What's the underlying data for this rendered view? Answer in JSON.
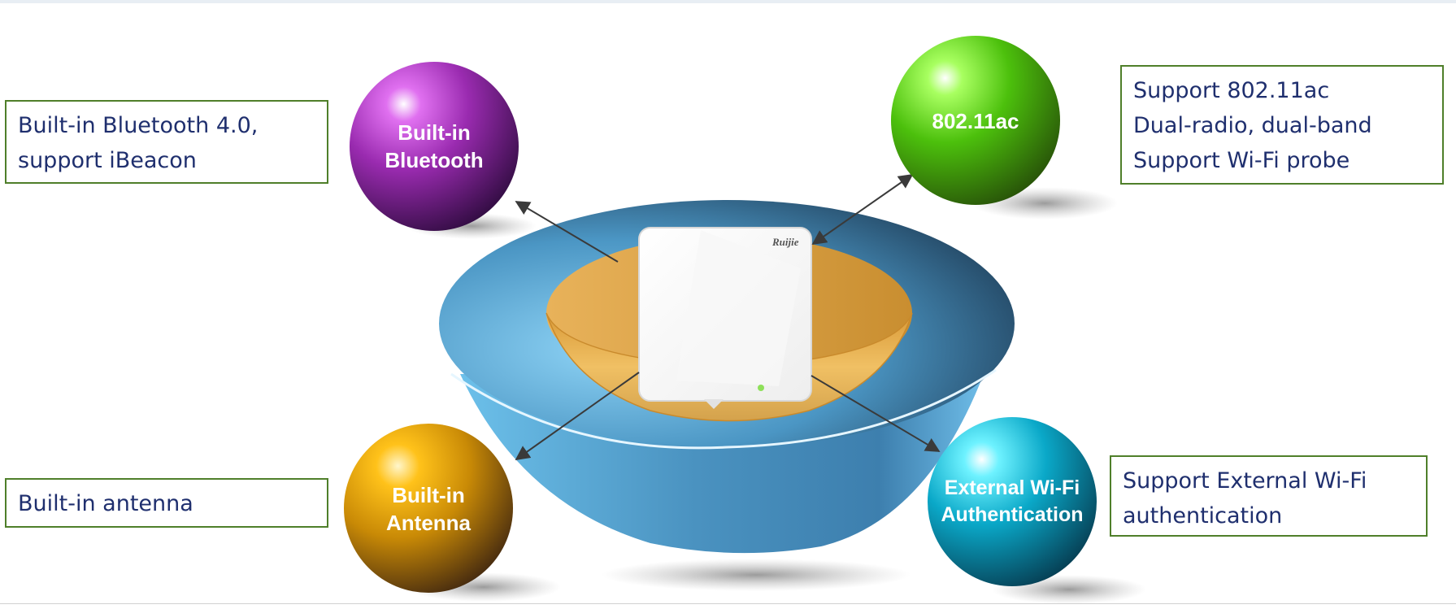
{
  "features": {
    "bluetooth": {
      "orb_lines": [
        "Built-in",
        "Bluetooth"
      ],
      "description": [
        "Built-in Bluetooth 4.0,",
        "support iBeacon"
      ],
      "color": "#9a2bb0"
    },
    "wifi": {
      "orb_lines": [
        "802.11ac"
      ],
      "description": [
        "Support 802.11ac",
        "Dual-radio, dual-band",
        "Support Wi-Fi probe"
      ],
      "color": "#5bc80f"
    },
    "antenna": {
      "orb_lines": [
        "Built-in",
        "Antenna"
      ],
      "description": [
        "Built-in antenna"
      ],
      "color": "#d99a0b"
    },
    "external_auth": {
      "orb_lines": [
        "External Wi-Fi",
        "Authentication"
      ],
      "description": [
        "Support External Wi-Fi",
        "authentication"
      ],
      "color": "#0ab4d6"
    }
  },
  "device": {
    "brand": "Ruijie",
    "led_color": "#8ee05a"
  },
  "colors": {
    "box_border": "#4f7f2a",
    "description_text": "#1f2f6e",
    "outer_bowl": "#5fb3e0",
    "inner_bowl": "#e6b254"
  }
}
